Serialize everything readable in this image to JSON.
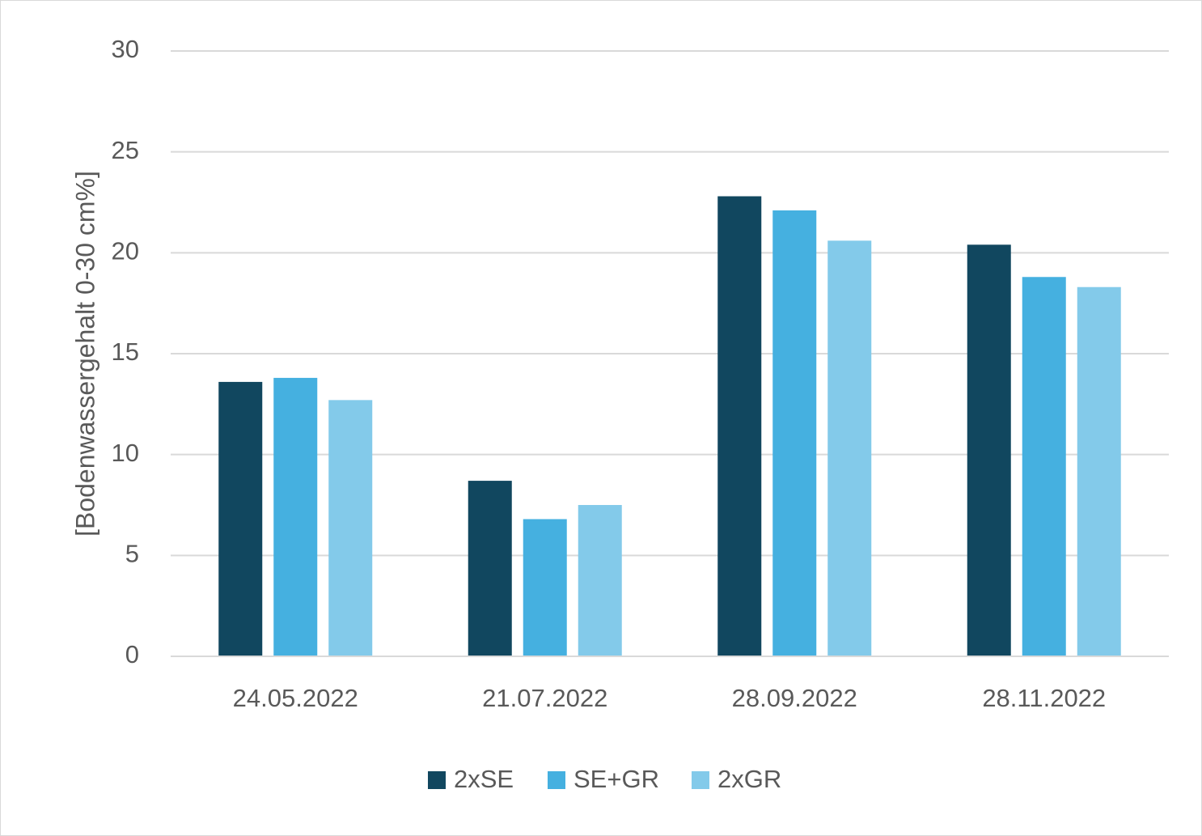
{
  "chart_data": {
    "type": "bar",
    "title": "",
    "xlabel": "",
    "ylabel": "[Bodenwassergehalt 0-30 cm%]",
    "categories": [
      "24.05.2022",
      "21.07.2022",
      "28.09.2022",
      "28.11.2022"
    ],
    "series": [
      {
        "name": "2xSE",
        "color": "#11475f",
        "values": [
          13.6,
          8.7,
          22.8,
          20.4
        ]
      },
      {
        "name": "SE+GR",
        "color": "#45b0e0",
        "values": [
          13.8,
          6.8,
          22.1,
          18.8
        ]
      },
      {
        "name": "2xGR",
        "color": "#83caea",
        "values": [
          12.7,
          7.5,
          20.6,
          18.3
        ]
      }
    ],
    "ylim": [
      0,
      30
    ],
    "yticks": [
      "0",
      "5",
      "10",
      "15",
      "20",
      "25",
      "30"
    ],
    "grid": true,
    "gridColor": "#d9d9d9",
    "legend": "bottom-center"
  }
}
